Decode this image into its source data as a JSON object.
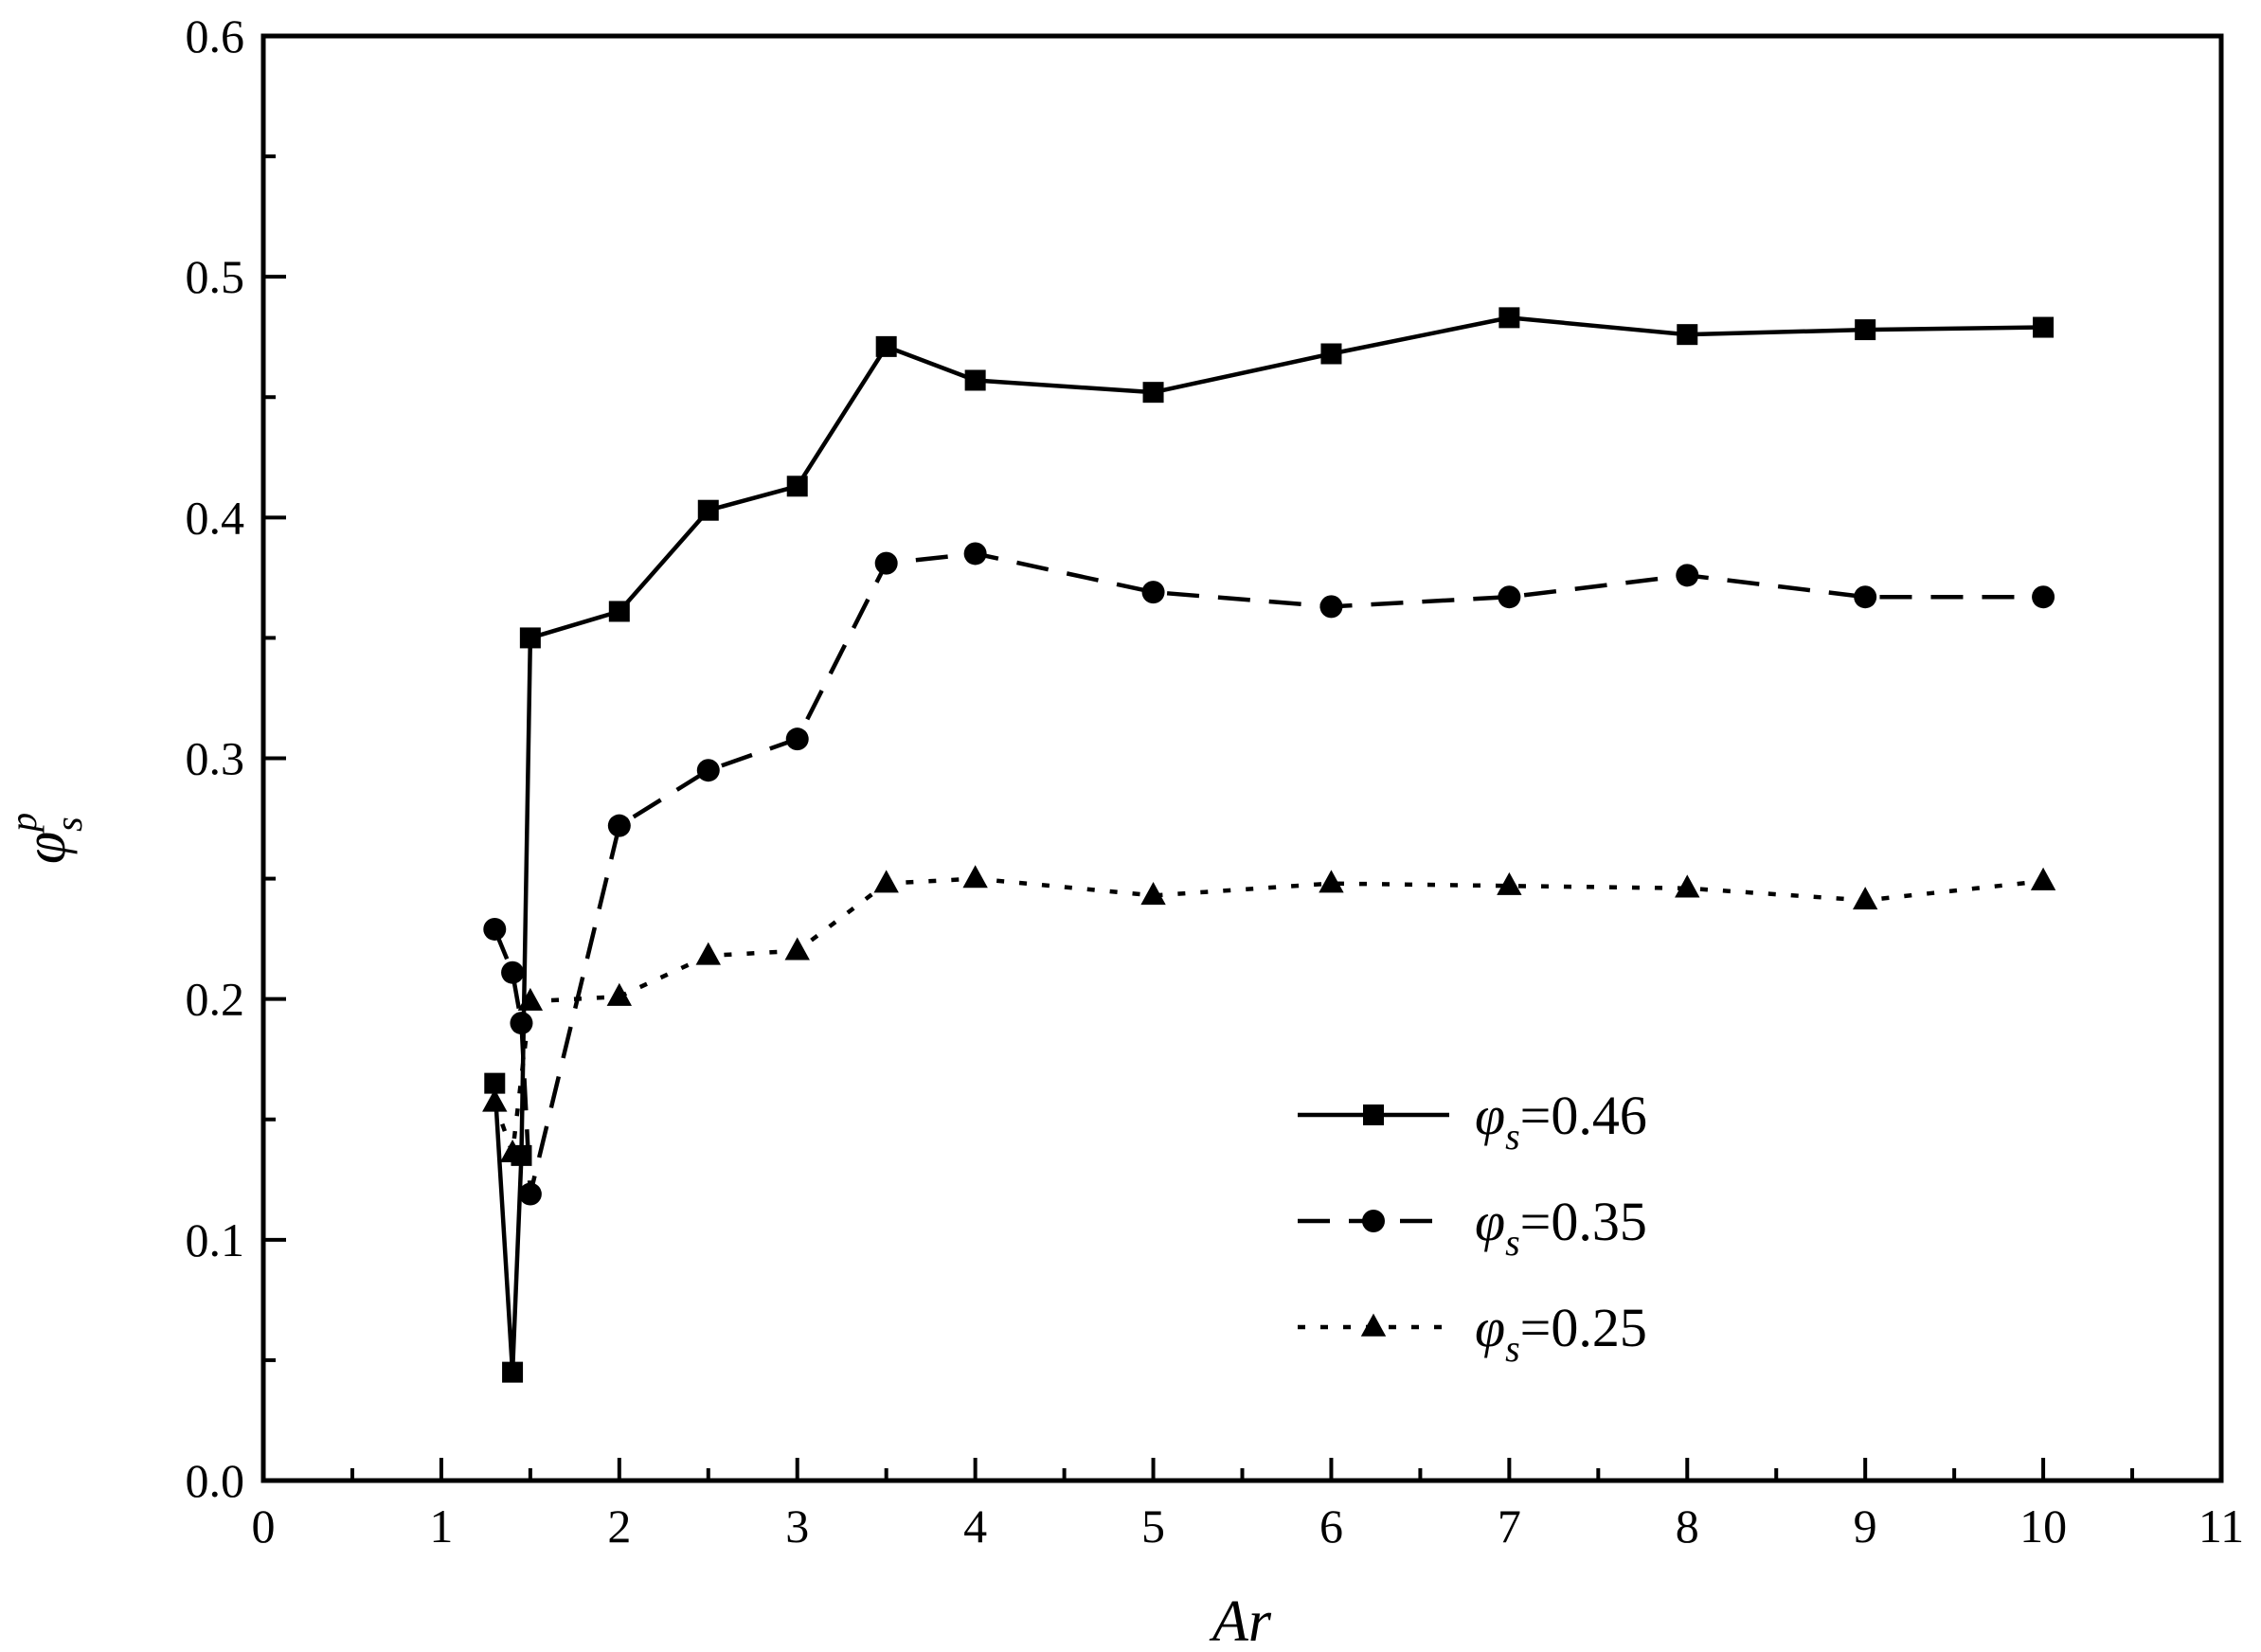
{
  "chart_data": {
    "type": "line",
    "title": "",
    "xlabel": "Ar",
    "ylabel": {
      "symbol": "φ",
      "superscript": "p",
      "subscript": "s"
    },
    "xlim": [
      0,
      11
    ],
    "ylim": [
      0.0,
      0.6
    ],
    "xticks": [
      0,
      1,
      2,
      3,
      4,
      5,
      6,
      7,
      8,
      9,
      10,
      11
    ],
    "xtick_labels": [
      "0",
      "1",
      "2",
      "3",
      "4",
      "5",
      "6",
      "7",
      "8",
      "9",
      "10",
      "11"
    ],
    "yticks": [
      0.0,
      0.1,
      0.2,
      0.3,
      0.4,
      0.5,
      0.6
    ],
    "ytick_labels": [
      "0.0",
      "0.1",
      "0.2",
      "0.3",
      "0.4",
      "0.5",
      "0.6"
    ],
    "grid": false,
    "legend_position": "bottom-right",
    "series": [
      {
        "name": {
          "symbol": "φ",
          "subscript": "s",
          "value": "=0.46"
        },
        "line_style": "solid",
        "marker": "square",
        "color": "#000000",
        "x": [
          1.3,
          1.4,
          1.45,
          1.5,
          2,
          2.5,
          3,
          3.5,
          4,
          5,
          6,
          7,
          8,
          9,
          10
        ],
        "y": [
          0.165,
          0.045,
          0.135,
          0.35,
          0.361,
          0.403,
          0.413,
          0.471,
          0.457,
          0.452,
          0.468,
          0.483,
          0.476,
          0.478,
          0.479
        ]
      },
      {
        "name": {
          "symbol": "φ",
          "subscript": "s",
          "value": "=0.35"
        },
        "line_style": "dashed",
        "marker": "circle",
        "color": "#000000",
        "x": [
          1.3,
          1.4,
          1.45,
          1.5,
          2,
          2.5,
          3,
          3.5,
          4,
          5,
          6,
          7,
          8,
          9,
          10
        ],
        "y": [
          0.229,
          0.211,
          0.19,
          0.119,
          0.272,
          0.295,
          0.308,
          0.381,
          0.385,
          0.369,
          0.363,
          0.367,
          0.376,
          0.367,
          0.367
        ]
      },
      {
        "name": {
          "symbol": "φ",
          "subscript": "s",
          "value": "=0.25"
        },
        "line_style": "dotted",
        "marker": "triangle",
        "color": "#000000",
        "x": [
          1.3,
          1.4,
          1.5,
          2,
          2.5,
          3,
          3.5,
          4,
          5,
          6,
          7,
          8,
          9,
          10
        ],
        "y": [
          0.157,
          0.136,
          0.199,
          0.201,
          0.218,
          0.22,
          0.248,
          0.25,
          0.243,
          0.248,
          0.247,
          0.246,
          0.241,
          0.249
        ]
      }
    ]
  }
}
